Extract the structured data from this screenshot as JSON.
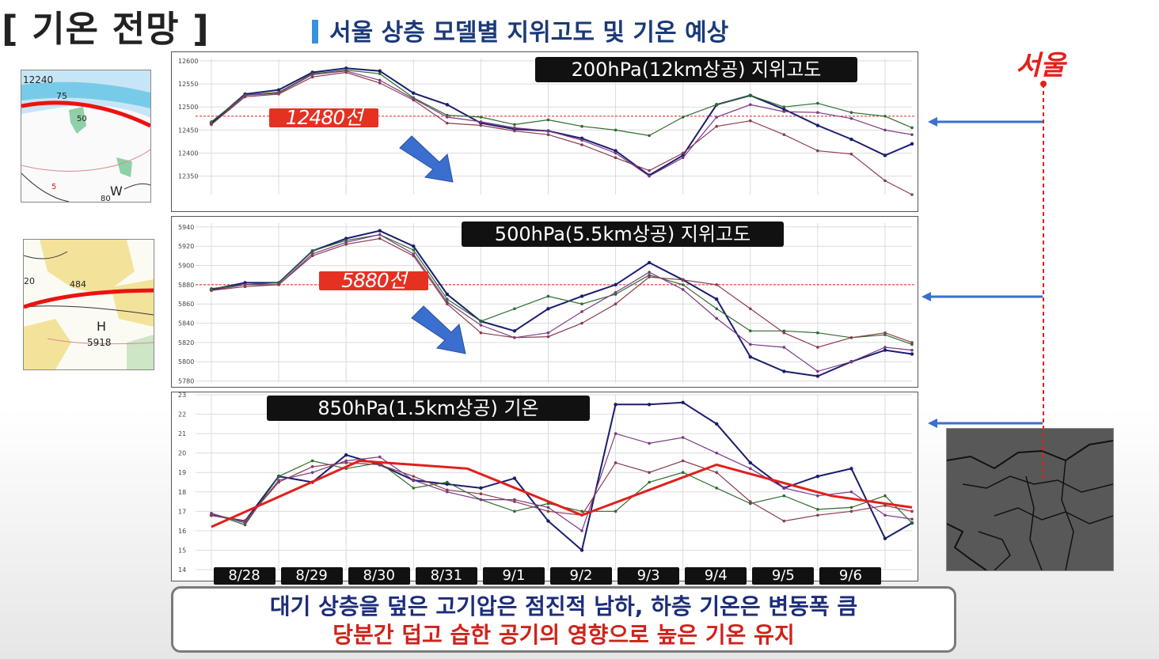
{
  "header": {
    "title": "[ 기온 전망 ]",
    "subtitle": "서울 상층 모델별 지위고도 및 기온 예상"
  },
  "location_label": "서울",
  "colors": {
    "model_navy": "#1a1d6e",
    "model_green": "#2e6b2e",
    "model_purple": "#7a3a86",
    "model_maroon": "#8b3c4e",
    "trend_red": "#e0201c",
    "arrow_blue": "#3a6fcf"
  },
  "maps": [
    {
      "name": "upper-200hpa-map",
      "labels": [
        "12240",
        "75",
        "50",
        "5",
        "W",
        "80"
      ]
    },
    {
      "name": "upper-500hpa-map",
      "labels": [
        "20",
        "484",
        "H",
        "5918"
      ]
    },
    {
      "name": "seoul-location-map",
      "labels": []
    }
  ],
  "summary": {
    "line1": "대기 상층을 덮은 고기압은 점진적 남하, 하층 기온은 변동폭 큼",
    "line2": "당분간 덥고 습한 공기의 영향으로 높은 기온 유지"
  },
  "chart_data": [
    {
      "type": "line",
      "title": "200hPa(12km상공) 지위고도",
      "ylim": [
        12310,
        12605
      ],
      "yticks": [
        12600,
        12550,
        12500,
        12450,
        12400,
        12350
      ],
      "xlim": [
        0,
        10.4
      ],
      "reference_line": {
        "value": 12480,
        "label": "12480선"
      },
      "series": [
        {
          "x": [
            0,
            0.5,
            1,
            1.5,
            2,
            2.5,
            3,
            3.5,
            4,
            4.5,
            5,
            5.5,
            6,
            6.5,
            7,
            7.5,
            8,
            8.5,
            9,
            9.5,
            10,
            10.4
          ],
          "y": [
            12465,
            12528,
            12537,
            12575,
            12584,
            12578,
            12530,
            12505,
            12465,
            12452,
            12448,
            12432,
            12405,
            12352,
            12395,
            12505,
            12525,
            12495,
            12460,
            12430,
            12395,
            12420
          ]
        },
        {
          "x": [
            0,
            0.5,
            1,
            1.5,
            2,
            2.5,
            3,
            3.5,
            4,
            4.5,
            5,
            5.5,
            6,
            6.5,
            7,
            7.5,
            8,
            8.5,
            9,
            9.5,
            10,
            10.4
          ],
          "y": [
            12468,
            12526,
            12532,
            12572,
            12580,
            12572,
            12520,
            12482,
            12478,
            12462,
            12472,
            12458,
            12450,
            12438,
            12478,
            12505,
            12525,
            12500,
            12508,
            12488,
            12480,
            12455
          ]
        },
        {
          "x": [
            0,
            0.5,
            1,
            1.5,
            2,
            2.5,
            3,
            3.5,
            4,
            4.5,
            5,
            5.5,
            6,
            6.5,
            7,
            7.5,
            8,
            8.5,
            9,
            9.5,
            10,
            10.4
          ],
          "y": [
            12462,
            12525,
            12530,
            12570,
            12578,
            12558,
            12518,
            12478,
            12468,
            12455,
            12448,
            12428,
            12400,
            12350,
            12390,
            12478,
            12505,
            12490,
            12488,
            12475,
            12450,
            12440
          ]
        },
        {
          "x": [
            0,
            0.5,
            1,
            1.5,
            2,
            2.5,
            3,
            3.5,
            4,
            4.5,
            5,
            5.5,
            6,
            6.5,
            7,
            7.5,
            8,
            8.5,
            9,
            9.5,
            10,
            10.4
          ],
          "y": [
            12462,
            12522,
            12528,
            12565,
            12575,
            12552,
            12515,
            12465,
            12460,
            12448,
            12440,
            12418,
            12390,
            12362,
            12400,
            12458,
            12470,
            12440,
            12405,
            12398,
            12340,
            12310
          ]
        }
      ]
    },
    {
      "type": "line",
      "title": "500hPa(5.5km상공) 지위고도",
      "ylim": [
        5778,
        5944
      ],
      "yticks": [
        5940,
        5920,
        5900,
        5880,
        5860,
        5840,
        5820,
        5800,
        5780
      ],
      "xlim": [
        0,
        10.4
      ],
      "reference_line": {
        "value": 5880,
        "label": "5880선"
      },
      "series": [
        {
          "x": [
            0,
            0.5,
            1,
            1.5,
            2,
            2.5,
            3,
            3.5,
            4,
            4.5,
            5,
            5.5,
            6,
            6.5,
            7,
            7.5,
            8,
            8.5,
            9,
            9.5,
            10,
            10.4
          ],
          "y": [
            5875,
            5882,
            5882,
            5915,
            5928,
            5936,
            5920,
            5870,
            5842,
            5832,
            5855,
            5868,
            5880,
            5903,
            5885,
            5865,
            5805,
            5790,
            5785,
            5800,
            5812,
            5808
          ]
        },
        {
          "x": [
            0,
            0.5,
            1,
            1.5,
            2,
            2.5,
            3,
            3.5,
            4,
            4.5,
            5,
            5.5,
            6,
            6.5,
            7,
            7.5,
            8,
            8.5,
            9,
            9.5,
            10,
            10.4
          ],
          "y": [
            5876,
            5880,
            5882,
            5915,
            5926,
            5932,
            5916,
            5865,
            5842,
            5855,
            5868,
            5860,
            5870,
            5890,
            5880,
            5855,
            5832,
            5832,
            5830,
            5825,
            5828,
            5818
          ]
        },
        {
          "x": [
            0,
            0.5,
            1,
            1.5,
            2,
            2.5,
            3,
            3.5,
            4,
            4.5,
            5,
            5.5,
            6,
            6.5,
            7,
            7.5,
            8,
            8.5,
            9,
            9.5,
            10,
            10.4
          ],
          "y": [
            5874,
            5880,
            5880,
            5912,
            5924,
            5932,
            5912,
            5862,
            5838,
            5825,
            5830,
            5852,
            5872,
            5893,
            5875,
            5845,
            5818,
            5815,
            5790,
            5800,
            5815,
            5812
          ]
        },
        {
          "x": [
            0,
            0.5,
            1,
            1.5,
            2,
            2.5,
            3,
            3.5,
            4,
            4.5,
            5,
            5.5,
            6,
            6.5,
            7,
            7.5,
            8,
            8.5,
            9,
            9.5,
            10,
            10.4
          ],
          "y": [
            5874,
            5878,
            5880,
            5910,
            5922,
            5928,
            5910,
            5860,
            5830,
            5825,
            5826,
            5840,
            5860,
            5888,
            5885,
            5880,
            5855,
            5830,
            5815,
            5825,
            5830,
            5820
          ]
        }
      ]
    },
    {
      "type": "line",
      "title": "850hPa(1.5km상공) 기온",
      "ylim": [
        14,
        23
      ],
      "yticks": [
        23,
        22,
        21,
        20,
        19,
        18,
        17,
        16,
        15,
        14
      ],
      "xlim": [
        0,
        10.4
      ],
      "categories": [
        "8/28",
        "8/29",
        "8/30",
        "8/31",
        "9/1",
        "9/2",
        "9/3",
        "9/4",
        "9/5",
        "9/6"
      ],
      "series": [
        {
          "x": [
            0,
            0.5,
            1,
            1.5,
            2,
            2.5,
            3,
            3.5,
            4,
            4.5,
            5,
            5.5,
            6,
            6.5,
            7,
            7.5,
            8,
            8.5,
            9,
            9.5,
            10,
            10.4
          ],
          "y": [
            16.8,
            16.5,
            18.8,
            18.5,
            19.9,
            19.4,
            18.6,
            18.4,
            18.2,
            18.7,
            16.5,
            15.0,
            22.5,
            22.5,
            22.6,
            21.5,
            19.5,
            18.2,
            18.8,
            19.2,
            15.6,
            16.4
          ]
        },
        {
          "x": [
            0,
            0.5,
            1,
            1.5,
            2,
            2.5,
            3,
            3.5,
            4,
            4.5,
            5,
            5.5,
            6,
            6.5,
            7,
            7.5,
            8,
            8.5,
            9,
            9.5,
            10,
            10.4
          ],
          "y": [
            16.9,
            16.3,
            18.8,
            19.6,
            19.2,
            19.5,
            18.2,
            18.5,
            17.6,
            17.0,
            17.4,
            17.0,
            17.0,
            18.5,
            19.0,
            18.2,
            17.4,
            17.8,
            17.1,
            17.2,
            17.8,
            16.4
          ]
        },
        {
          "x": [
            0,
            0.5,
            1,
            1.5,
            2,
            2.5,
            3,
            3.5,
            4,
            4.5,
            5,
            5.5,
            6,
            6.5,
            7,
            7.5,
            8,
            8.5,
            9,
            9.5,
            10,
            10.4
          ],
          "y": [
            16.9,
            16.4,
            18.6,
            19.0,
            19.6,
            19.8,
            18.6,
            18.0,
            17.6,
            17.6,
            17.2,
            16.0,
            21.0,
            20.5,
            20.8,
            20.0,
            19.2,
            18.2,
            17.8,
            18.0,
            16.8,
            16.6
          ]
        },
        {
          "x": [
            0,
            0.5,
            1,
            1.5,
            2,
            2.5,
            3,
            3.5,
            4,
            4.5,
            5,
            5.5,
            6,
            6.5,
            7,
            7.5,
            8,
            8.5,
            9,
            9.5,
            10,
            10.4
          ],
          "y": [
            16.8,
            16.5,
            18.5,
            19.3,
            19.5,
            19.4,
            18.8,
            18.1,
            17.9,
            17.5,
            17.0,
            16.8,
            19.5,
            19.0,
            19.6,
            19.0,
            17.5,
            16.5,
            16.8,
            17.0,
            17.3,
            17.0
          ]
        }
      ],
      "trend": {
        "x": [
          0,
          2.2,
          3.8,
          5.5,
          7.5,
          9.2,
          10.4
        ],
        "y": [
          16.2,
          19.6,
          19.2,
          16.8,
          19.4,
          17.8,
          17.2
        ]
      }
    }
  ]
}
